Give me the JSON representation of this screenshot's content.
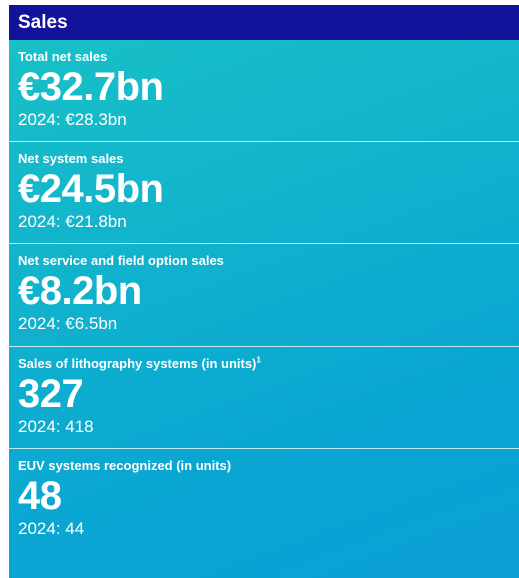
{
  "panel": {
    "title": "Sales"
  },
  "metrics": [
    {
      "label": "Total net sales",
      "footnote": "",
      "value": "€32.7bn",
      "compare": "2024: €28.3bn"
    },
    {
      "label": "Net system sales",
      "footnote": "",
      "value": "€24.5bn",
      "compare": "2024: €21.8bn"
    },
    {
      "label": "Net service and field option sales",
      "footnote": "",
      "value": "€8.2bn",
      "compare": "2024: €6.5bn"
    },
    {
      "label": "Sales of lithography systems (in units)",
      "footnote": "1",
      "value": "327",
      "compare": "2024: 418"
    },
    {
      "label": "EUV systems recognized (in units)",
      "footnote": "",
      "value": "48",
      "compare": "2024: 44"
    }
  ],
  "colors": {
    "header_bg": "#12129a",
    "panel_gradient_start": "#18c2c6",
    "panel_gradient_end": "#0b9fd6",
    "text": "#ffffff"
  }
}
